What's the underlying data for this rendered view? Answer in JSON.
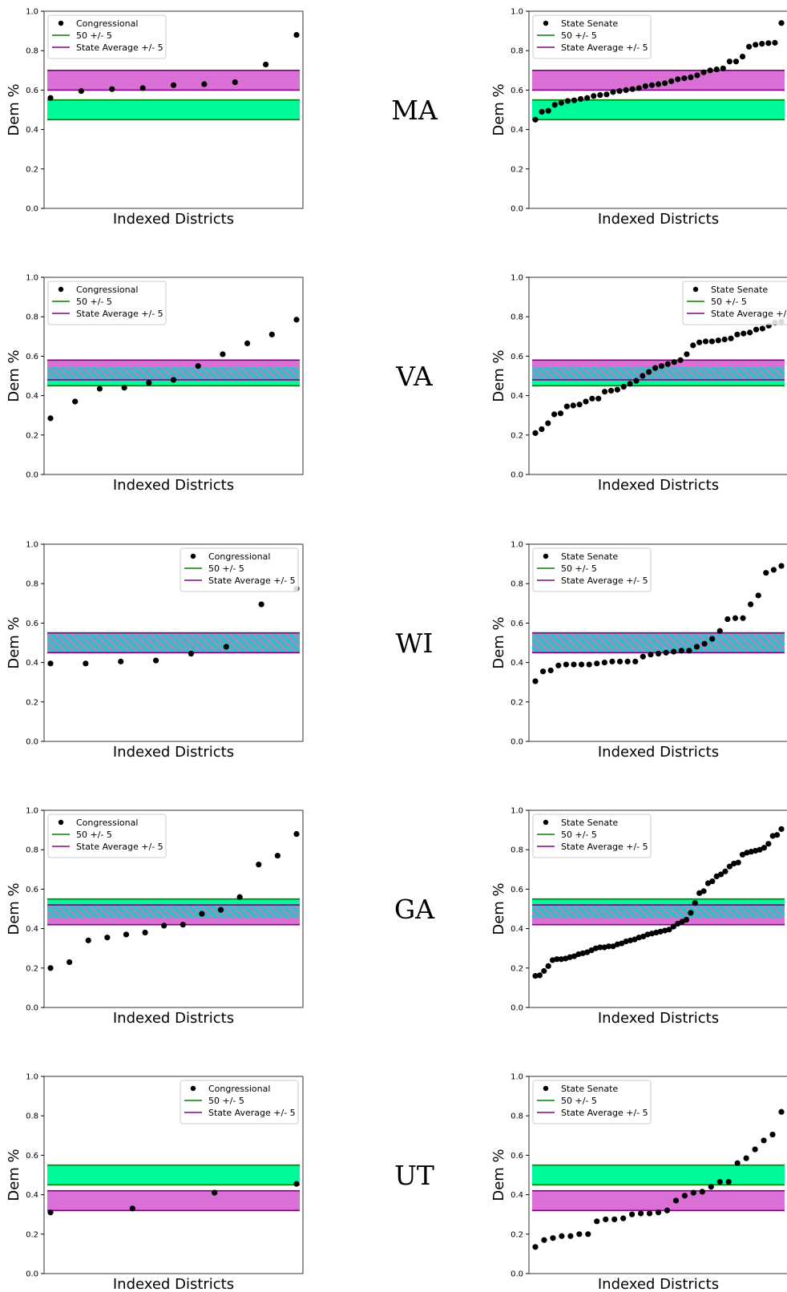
{
  "colors": {
    "band_50": "#00fa9a",
    "band_50_line": "#008000",
    "band_state": "#da70d6",
    "band_state_line": "#800080",
    "point": "#000000",
    "frame": "#555555"
  },
  "legend_labels": {
    "band_50": "50 +/- 5",
    "band_state": "State Average +/- 5"
  },
  "chart_data": [
    {
      "type": "scatter",
      "state": "MA",
      "xlabel": "Indexed Districts",
      "ylabel": "Dem %",
      "ylim": [
        0,
        1
      ],
      "yticks": [
        0.0,
        0.2,
        0.4,
        0.6,
        0.8,
        1.0
      ],
      "legend": "top-left",
      "series": [
        {
          "name": "Congressional",
          "values": [
            0.56,
            0.595,
            0.605,
            0.61,
            0.625,
            0.63,
            0.64,
            0.73,
            0.88
          ]
        }
      ],
      "band_50": [
        0.45,
        0.55
      ],
      "band_state": [
        0.6,
        0.7
      ]
    },
    {
      "type": "scatter",
      "state": "MA",
      "xlabel": "Indexed Districts",
      "ylabel": "Dem %",
      "ylim": [
        0,
        1
      ],
      "yticks": [
        0.0,
        0.2,
        0.4,
        0.6,
        0.8,
        1.0
      ],
      "legend": "top-left",
      "series": [
        {
          "name": "State Senate",
          "values": [
            0.45,
            0.49,
            0.495,
            0.525,
            0.535,
            0.545,
            0.548,
            0.555,
            0.56,
            0.57,
            0.575,
            0.578,
            0.59,
            0.595,
            0.6,
            0.605,
            0.61,
            0.62,
            0.625,
            0.63,
            0.635,
            0.645,
            0.655,
            0.66,
            0.665,
            0.675,
            0.69,
            0.7,
            0.705,
            0.71,
            0.745,
            0.745,
            0.77,
            0.82,
            0.83,
            0.835,
            0.838,
            0.84,
            0.94
          ]
        }
      ],
      "band_50": [
        0.45,
        0.55
      ],
      "band_state": [
        0.6,
        0.7
      ]
    },
    {
      "type": "scatter",
      "state": "VA",
      "xlabel": "Indexed Districts",
      "ylabel": "Dem %",
      "ylim": [
        0,
        1
      ],
      "yticks": [
        0.0,
        0.2,
        0.4,
        0.6,
        0.8,
        1.0
      ],
      "legend": "top-left",
      "series": [
        {
          "name": "Congressional",
          "values": [
            0.285,
            0.37,
            0.435,
            0.44,
            0.465,
            0.48,
            0.55,
            0.61,
            0.665,
            0.71,
            0.785
          ]
        }
      ],
      "band_50": [
        0.45,
        0.55
      ],
      "band_state": [
        0.48,
        0.58
      ]
    },
    {
      "type": "scatter",
      "state": "VA",
      "xlabel": "Indexed Districts",
      "ylabel": "Dem %",
      "ylim": [
        0,
        1
      ],
      "yticks": [
        0.0,
        0.2,
        0.4,
        0.6,
        0.8,
        1.0
      ],
      "legend": "top-right",
      "series": [
        {
          "name": "State Senate",
          "values": [
            0.21,
            0.23,
            0.26,
            0.305,
            0.31,
            0.345,
            0.35,
            0.355,
            0.37,
            0.385,
            0.385,
            0.42,
            0.425,
            0.43,
            0.445,
            0.46,
            0.475,
            0.5,
            0.52,
            0.54,
            0.55,
            0.56,
            0.57,
            0.58,
            0.61,
            0.655,
            0.67,
            0.675,
            0.675,
            0.68,
            0.685,
            0.69,
            0.71,
            0.715,
            0.72,
            0.735,
            0.74,
            0.755,
            0.77,
            0.775
          ]
        }
      ],
      "band_50": [
        0.45,
        0.55
      ],
      "band_state": [
        0.48,
        0.58
      ]
    },
    {
      "type": "scatter",
      "state": "WI",
      "xlabel": "Indexed Districts",
      "ylabel": "Dem %",
      "ylim": [
        0,
        1
      ],
      "yticks": [
        0.0,
        0.2,
        0.4,
        0.6,
        0.8,
        1.0
      ],
      "legend": "top-right",
      "series": [
        {
          "name": "Congressional",
          "values": [
            0.395,
            0.395,
            0.405,
            0.41,
            0.445,
            0.48,
            0.695,
            0.775
          ]
        }
      ],
      "band_50": [
        0.45,
        0.55
      ],
      "band_state": [
        0.45,
        0.55
      ]
    },
    {
      "type": "scatter",
      "state": "WI",
      "xlabel": "Indexed Districts",
      "ylabel": "Dem %",
      "ylim": [
        0,
        1
      ],
      "yticks": [
        0.0,
        0.2,
        0.4,
        0.6,
        0.8,
        1.0
      ],
      "legend": "top-left",
      "series": [
        {
          "name": "State Senate",
          "values": [
            0.305,
            0.355,
            0.36,
            0.385,
            0.39,
            0.39,
            0.39,
            0.39,
            0.395,
            0.4,
            0.405,
            0.405,
            0.405,
            0.405,
            0.43,
            0.44,
            0.445,
            0.45,
            0.455,
            0.46,
            0.46,
            0.48,
            0.495,
            0.52,
            0.56,
            0.62,
            0.625,
            0.625,
            0.695,
            0.74,
            0.855,
            0.87,
            0.89
          ]
        }
      ],
      "band_50": [
        0.45,
        0.55
      ],
      "band_state": [
        0.45,
        0.55
      ]
    },
    {
      "type": "scatter",
      "state": "GA",
      "xlabel": "Indexed Districts",
      "ylabel": "Dem %",
      "ylim": [
        0,
        1
      ],
      "yticks": [
        0.0,
        0.2,
        0.4,
        0.6,
        0.8,
        1.0
      ],
      "legend": "top-left",
      "series": [
        {
          "name": "Congressional",
          "values": [
            0.2,
            0.23,
            0.34,
            0.355,
            0.37,
            0.38,
            0.415,
            0.42,
            0.475,
            0.495,
            0.56,
            0.725,
            0.77,
            0.88
          ]
        }
      ],
      "band_50": [
        0.45,
        0.55
      ],
      "band_state": [
        0.42,
        0.52
      ]
    },
    {
      "type": "scatter",
      "state": "GA",
      "xlabel": "Indexed Districts",
      "ylabel": "Dem %",
      "ylim": [
        0,
        1
      ],
      "yticks": [
        0.0,
        0.2,
        0.4,
        0.6,
        0.8,
        1.0
      ],
      "legend": "top-left",
      "series": [
        {
          "name": "State Senate",
          "values": [
            0.16,
            0.163,
            0.185,
            0.21,
            0.24,
            0.245,
            0.245,
            0.248,
            0.255,
            0.26,
            0.27,
            0.275,
            0.28,
            0.29,
            0.3,
            0.305,
            0.305,
            0.31,
            0.31,
            0.32,
            0.325,
            0.335,
            0.34,
            0.345,
            0.355,
            0.36,
            0.37,
            0.375,
            0.38,
            0.385,
            0.39,
            0.395,
            0.41,
            0.425,
            0.435,
            0.445,
            0.48,
            0.53,
            0.58,
            0.59,
            0.63,
            0.64,
            0.665,
            0.675,
            0.69,
            0.715,
            0.73,
            0.735,
            0.775,
            0.785,
            0.79,
            0.795,
            0.8,
            0.81,
            0.83,
            0.87,
            0.875,
            0.905
          ]
        }
      ],
      "band_50": [
        0.45,
        0.55
      ],
      "band_state": [
        0.42,
        0.52
      ]
    },
    {
      "type": "scatter",
      "state": "UT",
      "xlabel": "Indexed Districts",
      "ylabel": "Dem %",
      "ylim": [
        0,
        1
      ],
      "yticks": [
        0.0,
        0.2,
        0.4,
        0.6,
        0.8,
        1.0
      ],
      "legend": "top-right",
      "series": [
        {
          "name": "Congressional",
          "values": [
            0.31,
            0.33,
            0.41,
            0.455
          ]
        }
      ],
      "band_50": [
        0.45,
        0.55
      ],
      "band_state": [
        0.32,
        0.42
      ]
    },
    {
      "type": "scatter",
      "state": "UT",
      "xlabel": "Indexed Districts",
      "ylabel": "Dem %",
      "ylim": [
        0,
        1
      ],
      "yticks": [
        0.0,
        0.2,
        0.4,
        0.6,
        0.8,
        1.0
      ],
      "legend": "top-left",
      "series": [
        {
          "name": "State Senate",
          "values": [
            0.135,
            0.17,
            0.18,
            0.19,
            0.19,
            0.2,
            0.2,
            0.265,
            0.275,
            0.275,
            0.28,
            0.3,
            0.305,
            0.305,
            0.31,
            0.32,
            0.37,
            0.395,
            0.41,
            0.415,
            0.44,
            0.465,
            0.465,
            0.56,
            0.585,
            0.63,
            0.675,
            0.705,
            0.82
          ]
        }
      ],
      "band_50": [
        0.45,
        0.55
      ],
      "band_state": [
        0.32,
        0.42
      ]
    }
  ]
}
